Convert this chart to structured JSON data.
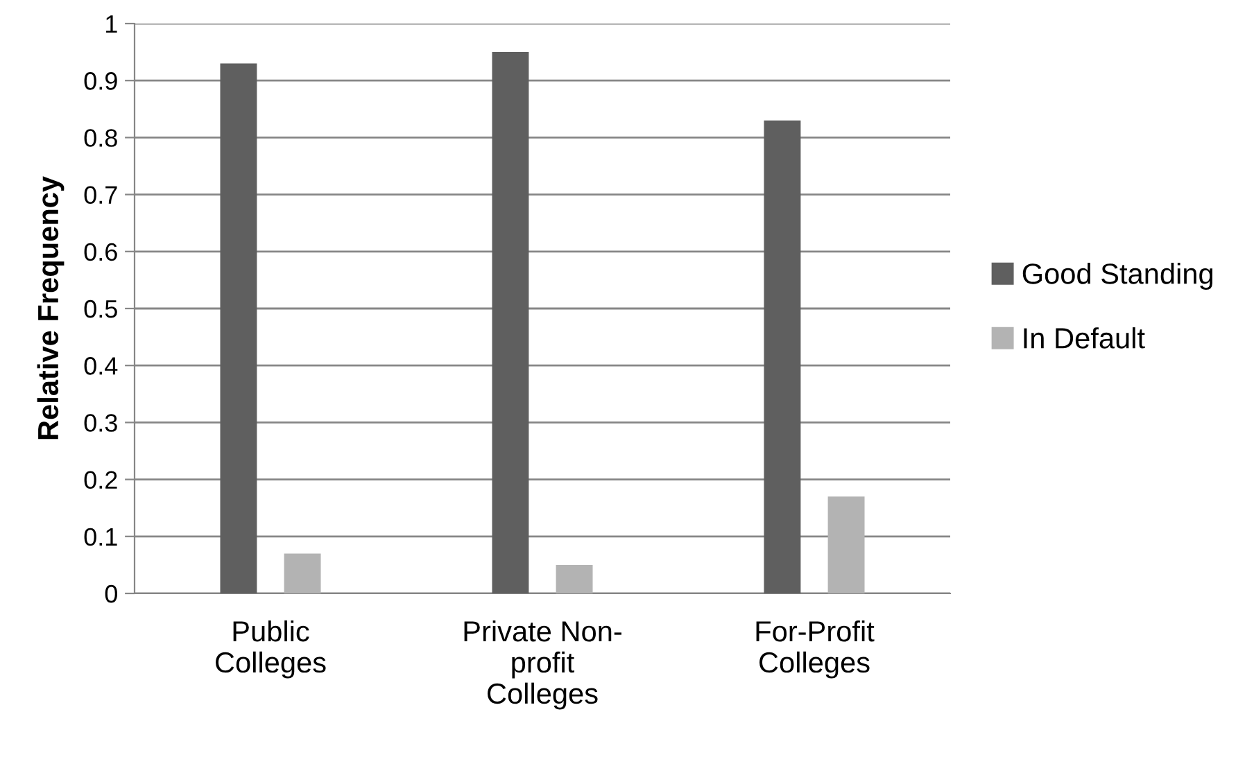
{
  "chart_data": {
    "type": "bar",
    "ylabel": "Relative Frequency",
    "categories": [
      "Public\nColleges",
      "Private Non-\nprofit\nColleges",
      "For-Profit\nColleges"
    ],
    "series": [
      {
        "name": "Good Standing",
        "color": "#5f5f5f",
        "values": [
          0.93,
          0.95,
          0.83
        ]
      },
      {
        "name": "In Default",
        "color": "#b3b3b3",
        "values": [
          0.07,
          0.05,
          0.17
        ]
      }
    ],
    "ylim": [
      0,
      1
    ],
    "yticks": [
      0,
      0.1,
      0.2,
      0.3,
      0.4,
      0.5,
      0.6,
      0.7,
      0.8,
      0.9,
      1
    ],
    "grid": "y",
    "legend": "right"
  }
}
